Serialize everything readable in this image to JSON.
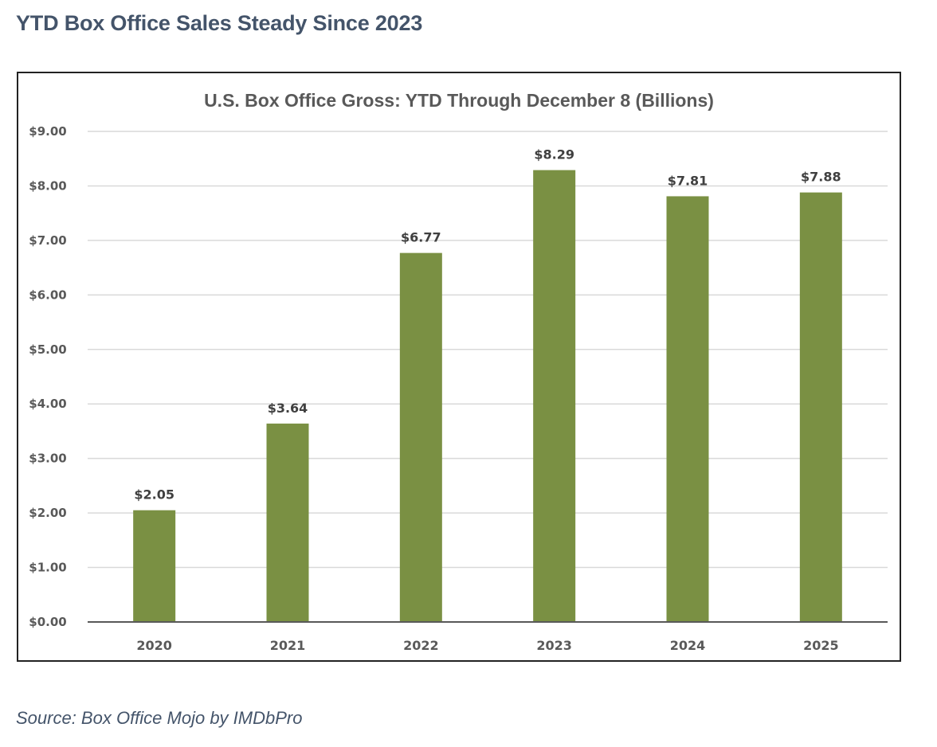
{
  "page": {
    "headline": "YTD Box Office Sales Steady Since 2023",
    "source": "Source: Box Office Mojo by IMDbPro"
  },
  "colors": {
    "bar": "#7a9043",
    "gridline": "#d9d9d9",
    "axis": "#595959",
    "headline": "#44546a"
  },
  "chart_data": {
    "type": "bar",
    "title": "U.S. Box Office Gross: YTD Through December 8 (Billions)",
    "xlabel": "",
    "ylabel": "",
    "categories": [
      "2020",
      "2021",
      "2022",
      "2023",
      "2024",
      "2025"
    ],
    "values": [
      2.05,
      3.64,
      6.77,
      8.29,
      7.81,
      7.88
    ],
    "data_labels": [
      "$2.05",
      "$3.64",
      "$6.77",
      "$8.29",
      "$7.81",
      "$7.88"
    ],
    "ylim": [
      0,
      9
    ],
    "yticks": [
      0,
      1,
      2,
      3,
      4,
      5,
      6,
      7,
      8,
      9
    ],
    "ytick_labels": [
      "$0.00",
      "$1.00",
      "$2.00",
      "$3.00",
      "$4.00",
      "$5.00",
      "$6.00",
      "$7.00",
      "$8.00",
      "$9.00"
    ],
    "grid": true,
    "legend": "none"
  }
}
